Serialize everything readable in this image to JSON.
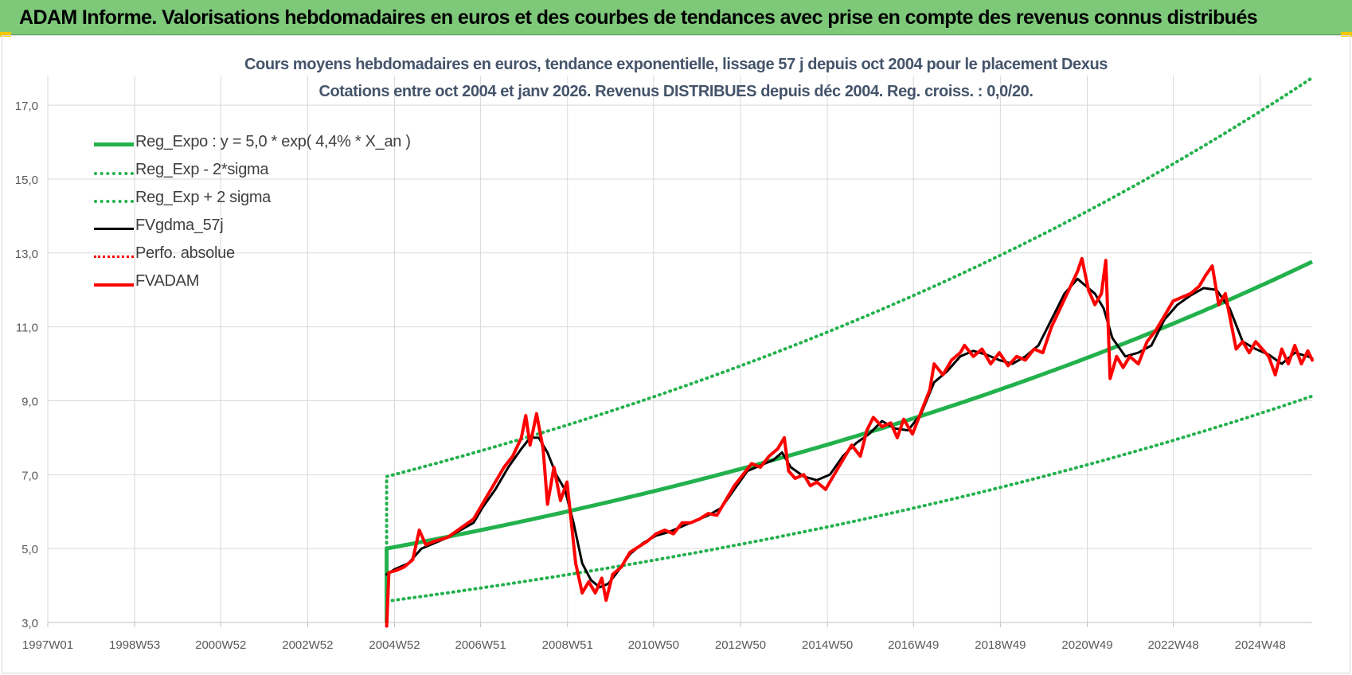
{
  "banner": {
    "title": "ADAM Informe. Valorisations hebdomadaires en euros et des courbes de tendances avec prise en compte des revenus connus distribués"
  },
  "colors": {
    "banner": "#7ec87a",
    "trend": "#22b14c",
    "smoothed": "#000000",
    "value": "#ff0000",
    "title": "#44546a",
    "grid": "#d9d9d9"
  },
  "chart_data": {
    "type": "line",
    "title": "Cours moyens hebdomadaires en euros, tendance exponentielle, lissage 57 j depuis oct 2004 pour le placement Dexus",
    "subtitle": "Cotations entre oct 2004 et janv 2026. Revenus DISTRIBUES depuis déc 2004. Reg. croiss. : 0,0/20.",
    "x_tick_labels": [
      "1997W01",
      "1998W53",
      "2000W52",
      "2002W52",
      "2004W52",
      "2006W51",
      "2008W51",
      "2010W50",
      "2012W50",
      "2014W50",
      "2016W49",
      "2018W49",
      "2020W49",
      "2022W48",
      "2024W48"
    ],
    "y_tick_labels": [
      "3,0",
      "5,0",
      "7,0",
      "9,0",
      "11,0",
      "13,0",
      "15,0",
      "17,0"
    ],
    "ylim": [
      3,
      17.8
    ],
    "xlim": [
      1997.0,
      2026.1
    ],
    "grid": true,
    "legend_position": "top-left",
    "regression": {
      "a": 5.0,
      "rate": 0.044,
      "start_year": 2004.8,
      "end_year": 2026.1,
      "sigma_factor_up": 1.39,
      "sigma_factor_down": 0.715
    },
    "series": [
      {
        "name": "Reg_Expo : y = 5,0 * exp( 4,4% *  X_an )",
        "style": "solid",
        "color": "#22b14c",
        "width": 5
      },
      {
        "name": "Reg_Exp - 2*sigma",
        "style": "dotted",
        "color": "#22b14c",
        "width": 4
      },
      {
        "name": "Reg_Exp + 2 sigma",
        "style": "dotted",
        "color": "#22b14c",
        "width": 4
      },
      {
        "name": "FVgdma_57j",
        "style": "solid",
        "color": "#000000",
        "width": 3,
        "points": [
          [
            2004.8,
            4.3
          ],
          [
            2005.0,
            4.45
          ],
          [
            2005.3,
            4.6
          ],
          [
            2005.6,
            5.0
          ],
          [
            2005.9,
            5.15
          ],
          [
            2006.2,
            5.3
          ],
          [
            2006.5,
            5.5
          ],
          [
            2006.8,
            5.7
          ],
          [
            2007.0,
            6.1
          ],
          [
            2007.3,
            6.6
          ],
          [
            2007.6,
            7.2
          ],
          [
            2007.9,
            7.7
          ],
          [
            2008.1,
            8.0
          ],
          [
            2008.3,
            8.0
          ],
          [
            2008.5,
            7.6
          ],
          [
            2008.7,
            7.0
          ],
          [
            2008.9,
            6.6
          ],
          [
            2009.1,
            5.7
          ],
          [
            2009.3,
            4.6
          ],
          [
            2009.5,
            4.15
          ],
          [
            2009.7,
            3.95
          ],
          [
            2009.9,
            4.05
          ],
          [
            2010.1,
            4.35
          ],
          [
            2010.4,
            4.85
          ],
          [
            2010.7,
            5.15
          ],
          [
            2011.0,
            5.35
          ],
          [
            2011.3,
            5.45
          ],
          [
            2011.6,
            5.6
          ],
          [
            2011.9,
            5.75
          ],
          [
            2012.2,
            5.9
          ],
          [
            2012.5,
            6.1
          ],
          [
            2012.8,
            6.6
          ],
          [
            2013.1,
            7.1
          ],
          [
            2013.4,
            7.25
          ],
          [
            2013.7,
            7.4
          ],
          [
            2013.9,
            7.6
          ],
          [
            2014.1,
            7.2
          ],
          [
            2014.4,
            6.95
          ],
          [
            2014.7,
            6.85
          ],
          [
            2015.0,
            7.0
          ],
          [
            2015.3,
            7.5
          ],
          [
            2015.6,
            7.85
          ],
          [
            2015.9,
            8.1
          ],
          [
            2016.2,
            8.45
          ],
          [
            2016.5,
            8.25
          ],
          [
            2016.8,
            8.2
          ],
          [
            2017.1,
            8.65
          ],
          [
            2017.4,
            9.5
          ],
          [
            2017.7,
            9.8
          ],
          [
            2018.0,
            10.2
          ],
          [
            2018.3,
            10.35
          ],
          [
            2018.6,
            10.25
          ],
          [
            2018.9,
            10.1
          ],
          [
            2019.2,
            10.0
          ],
          [
            2019.5,
            10.2
          ],
          [
            2019.8,
            10.5
          ],
          [
            2020.1,
            11.2
          ],
          [
            2020.4,
            11.9
          ],
          [
            2020.7,
            12.3
          ],
          [
            2020.9,
            12.1
          ],
          [
            2021.1,
            11.9
          ],
          [
            2021.3,
            11.5
          ],
          [
            2021.5,
            10.7
          ],
          [
            2021.8,
            10.2
          ],
          [
            2022.1,
            10.3
          ],
          [
            2022.4,
            10.5
          ],
          [
            2022.7,
            11.2
          ],
          [
            2023.0,
            11.6
          ],
          [
            2023.3,
            11.85
          ],
          [
            2023.6,
            12.05
          ],
          [
            2023.9,
            12.0
          ],
          [
            2024.2,
            11.5
          ],
          [
            2024.5,
            10.6
          ],
          [
            2024.8,
            10.4
          ],
          [
            2025.1,
            10.25
          ],
          [
            2025.4,
            10.0
          ],
          [
            2025.7,
            10.3
          ],
          [
            2026.0,
            10.2
          ],
          [
            2026.1,
            10.15
          ]
        ]
      },
      {
        "name": "Perfo. absolue",
        "style": "dotted",
        "color": "#ff0000",
        "width": 3
      },
      {
        "name": "FVADAM",
        "style": "solid",
        "color": "#ff0000",
        "width": 4,
        "points": [
          [
            2004.8,
            2.9
          ],
          [
            2004.85,
            4.35
          ],
          [
            2005.0,
            4.4
          ],
          [
            2005.2,
            4.5
          ],
          [
            2005.4,
            4.7
          ],
          [
            2005.55,
            5.5
          ],
          [
            2005.7,
            5.1
          ],
          [
            2005.9,
            5.2
          ],
          [
            2006.2,
            5.3
          ],
          [
            2006.5,
            5.55
          ],
          [
            2006.8,
            5.8
          ],
          [
            2007.0,
            6.2
          ],
          [
            2007.2,
            6.6
          ],
          [
            2007.5,
            7.2
          ],
          [
            2007.7,
            7.5
          ],
          [
            2007.9,
            8.0
          ],
          [
            2008.0,
            8.6
          ],
          [
            2008.1,
            7.8
          ],
          [
            2008.25,
            8.65
          ],
          [
            2008.4,
            7.7
          ],
          [
            2008.5,
            6.2
          ],
          [
            2008.65,
            7.2
          ],
          [
            2008.8,
            6.3
          ],
          [
            2008.95,
            6.8
          ],
          [
            2009.05,
            5.7
          ],
          [
            2009.15,
            4.6
          ],
          [
            2009.3,
            3.8
          ],
          [
            2009.45,
            4.1
          ],
          [
            2009.6,
            3.8
          ],
          [
            2009.75,
            4.2
          ],
          [
            2009.85,
            3.6
          ],
          [
            2010.0,
            4.3
          ],
          [
            2010.2,
            4.5
          ],
          [
            2010.4,
            4.9
          ],
          [
            2010.6,
            5.05
          ],
          [
            2010.8,
            5.2
          ],
          [
            2011.0,
            5.4
          ],
          [
            2011.2,
            5.5
          ],
          [
            2011.4,
            5.4
          ],
          [
            2011.6,
            5.7
          ],
          [
            2011.8,
            5.7
          ],
          [
            2012.0,
            5.8
          ],
          [
            2012.2,
            5.95
          ],
          [
            2012.4,
            5.9
          ],
          [
            2012.6,
            6.3
          ],
          [
            2012.8,
            6.7
          ],
          [
            2013.0,
            7.0
          ],
          [
            2013.2,
            7.3
          ],
          [
            2013.4,
            7.2
          ],
          [
            2013.6,
            7.5
          ],
          [
            2013.8,
            7.7
          ],
          [
            2013.95,
            8.0
          ],
          [
            2014.05,
            7.1
          ],
          [
            2014.2,
            6.9
          ],
          [
            2014.4,
            7.0
          ],
          [
            2014.55,
            6.7
          ],
          [
            2014.7,
            6.8
          ],
          [
            2014.9,
            6.6
          ],
          [
            2015.1,
            7.0
          ],
          [
            2015.3,
            7.4
          ],
          [
            2015.5,
            7.8
          ],
          [
            2015.7,
            7.5
          ],
          [
            2015.85,
            8.2
          ],
          [
            2016.0,
            8.55
          ],
          [
            2016.2,
            8.3
          ],
          [
            2016.4,
            8.4
          ],
          [
            2016.55,
            8.0
          ],
          [
            2016.7,
            8.5
          ],
          [
            2016.9,
            8.1
          ],
          [
            2017.1,
            8.7
          ],
          [
            2017.3,
            9.3
          ],
          [
            2017.4,
            10.0
          ],
          [
            2017.6,
            9.7
          ],
          [
            2017.8,
            10.1
          ],
          [
            2018.0,
            10.3
          ],
          [
            2018.1,
            10.5
          ],
          [
            2018.3,
            10.2
          ],
          [
            2018.5,
            10.4
          ],
          [
            2018.7,
            10.0
          ],
          [
            2018.9,
            10.3
          ],
          [
            2019.1,
            9.95
          ],
          [
            2019.3,
            10.2
          ],
          [
            2019.5,
            10.1
          ],
          [
            2019.7,
            10.4
          ],
          [
            2019.9,
            10.3
          ],
          [
            2020.1,
            11.0
          ],
          [
            2020.3,
            11.5
          ],
          [
            2020.5,
            12.0
          ],
          [
            2020.7,
            12.5
          ],
          [
            2020.8,
            12.85
          ],
          [
            2020.95,
            12.0
          ],
          [
            2021.1,
            11.6
          ],
          [
            2021.25,
            11.9
          ],
          [
            2021.35,
            12.8
          ],
          [
            2021.45,
            9.6
          ],
          [
            2021.6,
            10.2
          ],
          [
            2021.75,
            9.9
          ],
          [
            2021.9,
            10.2
          ],
          [
            2022.1,
            10.0
          ],
          [
            2022.3,
            10.6
          ],
          [
            2022.5,
            10.9
          ],
          [
            2022.7,
            11.3
          ],
          [
            2022.9,
            11.7
          ],
          [
            2023.1,
            11.8
          ],
          [
            2023.3,
            11.9
          ],
          [
            2023.5,
            12.1
          ],
          [
            2023.65,
            12.4
          ],
          [
            2023.8,
            12.65
          ],
          [
            2023.95,
            11.6
          ],
          [
            2024.1,
            11.9
          ],
          [
            2024.2,
            11.3
          ],
          [
            2024.35,
            10.4
          ],
          [
            2024.5,
            10.6
          ],
          [
            2024.65,
            10.3
          ],
          [
            2024.8,
            10.6
          ],
          [
            2024.95,
            10.4
          ],
          [
            2025.1,
            10.2
          ],
          [
            2025.25,
            9.7
          ],
          [
            2025.4,
            10.4
          ],
          [
            2025.55,
            10.0
          ],
          [
            2025.7,
            10.5
          ],
          [
            2025.85,
            10.0
          ],
          [
            2026.0,
            10.35
          ],
          [
            2026.1,
            10.1
          ]
        ]
      }
    ]
  }
}
